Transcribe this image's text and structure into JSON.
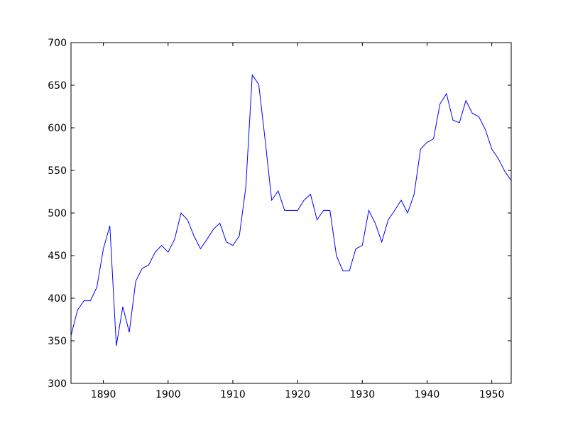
{
  "chart_data": {
    "type": "line",
    "title": "",
    "xlabel": "",
    "ylabel": "",
    "xlim": [
      1885,
      1953
    ],
    "ylim": [
      300,
      700
    ],
    "xticks": [
      1890,
      1900,
      1910,
      1920,
      1930,
      1940,
      1950
    ],
    "yticks": [
      300,
      350,
      400,
      450,
      500,
      550,
      600,
      650,
      700
    ],
    "grid": false,
    "line_color": "#0000ff",
    "x": [
      1885,
      1886,
      1887,
      1888,
      1889,
      1890,
      1891,
      1892,
      1893,
      1894,
      1895,
      1896,
      1897,
      1898,
      1899,
      1900,
      1901,
      1902,
      1903,
      1904,
      1905,
      1906,
      1907,
      1908,
      1909,
      1910,
      1911,
      1912,
      1913,
      1914,
      1915,
      1916,
      1917,
      1918,
      1919,
      1920,
      1921,
      1922,
      1923,
      1924,
      1925,
      1926,
      1927,
      1928,
      1929,
      1930,
      1931,
      1932,
      1933,
      1934,
      1935,
      1936,
      1937,
      1938,
      1939,
      1940,
      1941,
      1942,
      1943,
      1944,
      1945,
      1946,
      1947,
      1948,
      1949,
      1950,
      1951,
      1952,
      1953
    ],
    "y": [
      356,
      386,
      397,
      397,
      413,
      458,
      485,
      344,
      390,
      360,
      420,
      435,
      439,
      454,
      462,
      454,
      469,
      500,
      492,
      473,
      458,
      469,
      481,
      488,
      466,
      462,
      473,
      530,
      662,
      651,
      585,
      515,
      526,
      503,
      503,
      503,
      515,
      522,
      492,
      503,
      503,
      450,
      432,
      432,
      458,
      462,
      503,
      488,
      466,
      492,
      503,
      515,
      500,
      522,
      575,
      583,
      587,
      628,
      640,
      609,
      606,
      632,
      617,
      613,
      598,
      575,
      564,
      549,
      538
    ]
  }
}
